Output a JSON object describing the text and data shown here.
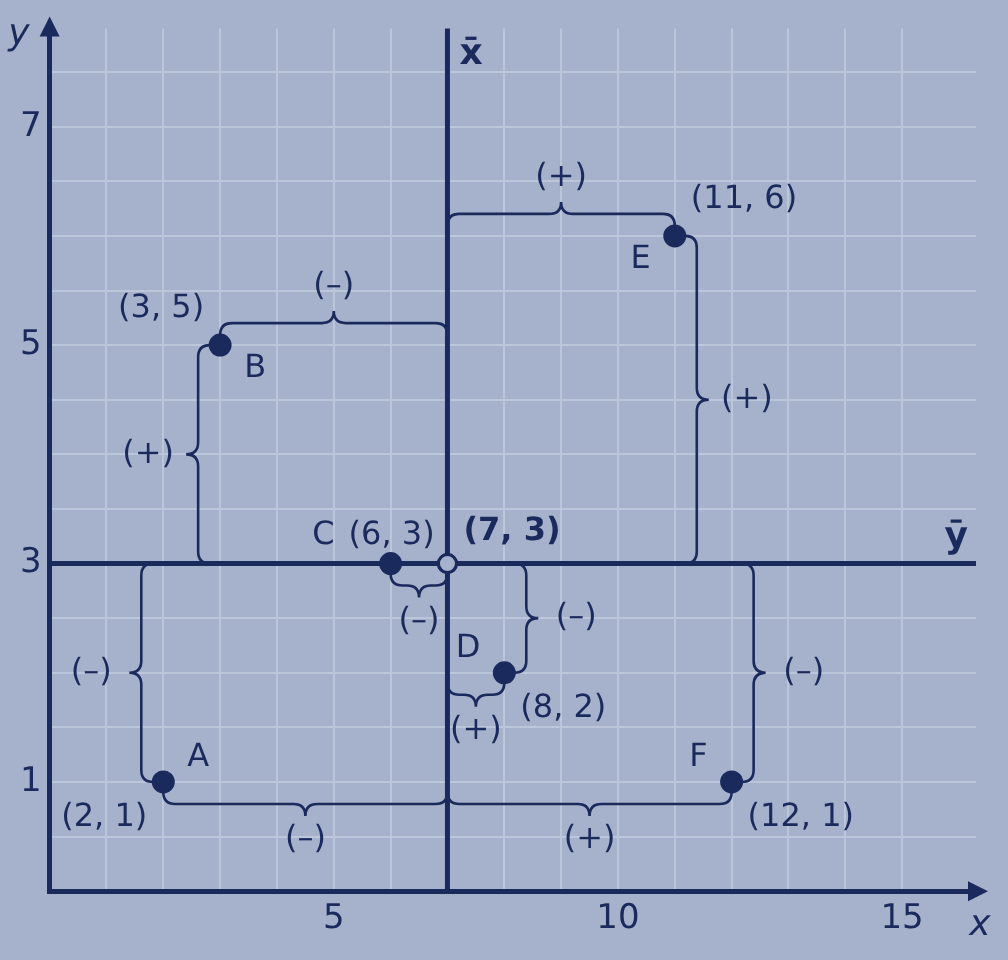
{
  "chart_data": {
    "type": "scatter",
    "xlabel": "x",
    "ylabel": "y",
    "series": [
      {
        "color": "#1b2a5c",
        "x": [
          2,
          3,
          6,
          8,
          11,
          12
        ],
        "values": [
          1,
          5,
          3,
          2,
          6,
          1
        ]
      },
      {
        "color": "#1b2a5c",
        "x": [
          7
        ],
        "values": [
          3
        ]
      }
    ],
    "xlim": [
      0,
      16.3
    ],
    "ylim": [
      0,
      7.9
    ],
    "xticks": [
      {
        "value": 1,
        "label": null
      },
      {
        "value": 2,
        "label": null
      },
      {
        "value": 3,
        "label": null
      },
      {
        "value": 4,
        "label": null
      },
      5,
      {
        "value": 6,
        "label": null
      },
      {
        "value": 8,
        "label": null
      },
      {
        "value": 9,
        "label": null
      },
      10,
      {
        "value": 11,
        "label": null
      },
      {
        "value": 12,
        "label": null
      },
      {
        "value": 13,
        "label": null
      },
      {
        "value": 14,
        "label": null
      },
      15
    ],
    "yticks": [
      {
        "value": 0.5,
        "label": null
      },
      1,
      {
        "value": 1.5,
        "label": null
      },
      {
        "value": 2,
        "label": null
      },
      {
        "value": 2.5,
        "label": null
      },
      3,
      {
        "value": 3.5,
        "label": null
      },
      {
        "value": 4,
        "label": null
      },
      {
        "value": 4.5,
        "label": null
      },
      5,
      {
        "value": 5.5,
        "label": null
      },
      {
        "value": 6,
        "label": null
      },
      {
        "value": 6.5,
        "label": null
      },
      7,
      {
        "value": 7.5,
        "label": null
      }
    ],
    "grid": true,
    "marker": "circle",
    "ref_lines": [
      {
        "axis": "x",
        "value": 7,
        "label": "x̄"
      },
      {
        "axis": "y",
        "value": 3,
        "label": "ȳ"
      }
    ],
    "annotations": [
      {
        "text": "A",
        "x": 2,
        "y": 1
      },
      {
        "text": "(2, 1)",
        "x": 2,
        "y": 1
      },
      {
        "text": "B",
        "x": 3,
        "y": 5
      },
      {
        "text": "(3, 5)",
        "x": 3,
        "y": 5
      },
      {
        "text": "C",
        "x": 6,
        "y": 3
      },
      {
        "text": "(6, 3)",
        "x": 6,
        "y": 3
      },
      {
        "text": "(7, 3)",
        "x": 7,
        "y": 3
      },
      {
        "text": "D",
        "x": 8,
        "y": 2
      },
      {
        "text": "(8, 2)",
        "x": 8,
        "y": 2
      },
      {
        "text": "E",
        "x": 11,
        "y": 6
      },
      {
        "text": "(11, 6)",
        "x": 11,
        "y": 6
      },
      {
        "text": "F",
        "x": 12,
        "y": 1
      },
      {
        "text": "(12, 1)",
        "x": 12,
        "y": 1
      },
      "(–)",
      "(–)",
      "(–)",
      "(+)",
      "(–)",
      "(+)",
      "(–)",
      "(+)",
      "(+)",
      "(+)",
      "(–)"
    ]
  }
}
